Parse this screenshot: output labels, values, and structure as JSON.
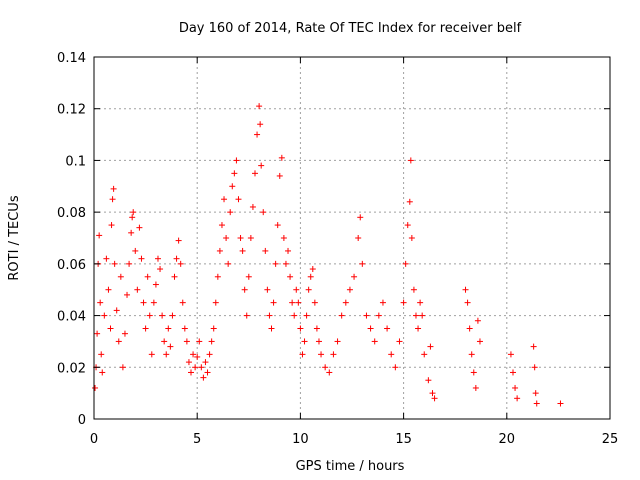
{
  "chart_data": {
    "type": "scatter",
    "title": "Day 160 of 2014, Rate Of TEC Index for receiver belf",
    "xlabel": "GPS time / hours",
    "ylabel": "ROTI / TECUs",
    "xlim": [
      0,
      25
    ],
    "ylim": [
      0,
      0.14
    ],
    "xticks": [
      "0",
      "5",
      "10",
      "15",
      "20",
      "25"
    ],
    "yticks": [
      "0",
      "0.02",
      "0.04",
      "0.06",
      "0.08",
      "0.1",
      "0.12",
      "0.14"
    ],
    "grid": true,
    "marker": "+",
    "color": "#ff0000",
    "series": [
      {
        "name": "ROTI",
        "points": [
          [
            0.05,
            0.012
          ],
          [
            0.1,
            0.02
          ],
          [
            0.15,
            0.033
          ],
          [
            0.2,
            0.06
          ],
          [
            0.25,
            0.071
          ],
          [
            0.3,
            0.045
          ],
          [
            0.35,
            0.025
          ],
          [
            0.4,
            0.018
          ],
          [
            0.5,
            0.04
          ],
          [
            0.6,
            0.062
          ],
          [
            0.7,
            0.05
          ],
          [
            0.8,
            0.035
          ],
          [
            0.85,
            0.075
          ],
          [
            0.9,
            0.085
          ],
          [
            0.95,
            0.089
          ],
          [
            1.0,
            0.06
          ],
          [
            1.1,
            0.042
          ],
          [
            1.2,
            0.03
          ],
          [
            1.3,
            0.055
          ],
          [
            1.4,
            0.02
          ],
          [
            1.5,
            0.033
          ],
          [
            1.6,
            0.048
          ],
          [
            1.7,
            0.06
          ],
          [
            1.8,
            0.072
          ],
          [
            1.85,
            0.078
          ],
          [
            1.9,
            0.08
          ],
          [
            2.0,
            0.065
          ],
          [
            2.1,
            0.05
          ],
          [
            2.2,
            0.074
          ],
          [
            2.3,
            0.062
          ],
          [
            2.4,
            0.045
          ],
          [
            2.5,
            0.035
          ],
          [
            2.6,
            0.055
          ],
          [
            2.7,
            0.04
          ],
          [
            2.8,
            0.025
          ],
          [
            2.9,
            0.045
          ],
          [
            3.0,
            0.052
          ],
          [
            3.1,
            0.062
          ],
          [
            3.2,
            0.058
          ],
          [
            3.3,
            0.04
          ],
          [
            3.4,
            0.03
          ],
          [
            3.5,
            0.025
          ],
          [
            3.6,
            0.035
          ],
          [
            3.7,
            0.028
          ],
          [
            3.8,
            0.04
          ],
          [
            3.9,
            0.055
          ],
          [
            4.0,
            0.062
          ],
          [
            4.1,
            0.069
          ],
          [
            4.2,
            0.06
          ],
          [
            4.3,
            0.045
          ],
          [
            4.4,
            0.035
          ],
          [
            4.5,
            0.03
          ],
          [
            4.6,
            0.022
          ],
          [
            4.7,
            0.018
          ],
          [
            4.8,
            0.025
          ],
          [
            4.9,
            0.02
          ],
          [
            5.0,
            0.024
          ],
          [
            5.1,
            0.03
          ],
          [
            5.2,
            0.02
          ],
          [
            5.3,
            0.016
          ],
          [
            5.4,
            0.022
          ],
          [
            5.5,
            0.018
          ],
          [
            5.6,
            0.025
          ],
          [
            5.7,
            0.03
          ],
          [
            5.8,
            0.035
          ],
          [
            5.9,
            0.045
          ],
          [
            6.0,
            0.055
          ],
          [
            6.1,
            0.065
          ],
          [
            6.2,
            0.075
          ],
          [
            6.3,
            0.085
          ],
          [
            6.4,
            0.07
          ],
          [
            6.5,
            0.06
          ],
          [
            6.6,
            0.08
          ],
          [
            6.7,
            0.09
          ],
          [
            6.8,
            0.095
          ],
          [
            6.9,
            0.1
          ],
          [
            7.0,
            0.085
          ],
          [
            7.1,
            0.07
          ],
          [
            7.2,
            0.065
          ],
          [
            7.3,
            0.05
          ],
          [
            7.4,
            0.04
          ],
          [
            7.5,
            0.055
          ],
          [
            7.6,
            0.07
          ],
          [
            7.7,
            0.082
          ],
          [
            7.8,
            0.095
          ],
          [
            7.9,
            0.11
          ],
          [
            8.0,
            0.121
          ],
          [
            8.05,
            0.114
          ],
          [
            8.1,
            0.098
          ],
          [
            8.2,
            0.08
          ],
          [
            8.3,
            0.065
          ],
          [
            8.4,
            0.05
          ],
          [
            8.5,
            0.04
          ],
          [
            8.6,
            0.035
          ],
          [
            8.7,
            0.045
          ],
          [
            8.8,
            0.06
          ],
          [
            8.9,
            0.075
          ],
          [
            9.0,
            0.094
          ],
          [
            9.1,
            0.101
          ],
          [
            9.2,
            0.07
          ],
          [
            9.3,
            0.06
          ],
          [
            9.4,
            0.065
          ],
          [
            9.5,
            0.055
          ],
          [
            9.6,
            0.045
          ],
          [
            9.7,
            0.04
          ],
          [
            9.8,
            0.05
          ],
          [
            9.9,
            0.045
          ],
          [
            10.0,
            0.035
          ],
          [
            10.1,
            0.025
          ],
          [
            10.2,
            0.03
          ],
          [
            10.3,
            0.04
          ],
          [
            10.4,
            0.05
          ],
          [
            10.5,
            0.055
          ],
          [
            10.6,
            0.058
          ],
          [
            10.7,
            0.045
          ],
          [
            10.8,
            0.035
          ],
          [
            10.9,
            0.03
          ],
          [
            11.0,
            0.025
          ],
          [
            11.2,
            0.02
          ],
          [
            11.4,
            0.018
          ],
          [
            11.6,
            0.025
          ],
          [
            11.8,
            0.03
          ],
          [
            12.0,
            0.04
          ],
          [
            12.2,
            0.045
          ],
          [
            12.4,
            0.05
          ],
          [
            12.6,
            0.055
          ],
          [
            12.8,
            0.07
          ],
          [
            12.9,
            0.078
          ],
          [
            13.0,
            0.06
          ],
          [
            13.2,
            0.04
          ],
          [
            13.4,
            0.035
          ],
          [
            13.6,
            0.03
          ],
          [
            13.8,
            0.04
          ],
          [
            14.0,
            0.045
          ],
          [
            14.2,
            0.035
          ],
          [
            14.4,
            0.025
          ],
          [
            14.6,
            0.02
          ],
          [
            14.8,
            0.03
          ],
          [
            15.0,
            0.045
          ],
          [
            15.1,
            0.06
          ],
          [
            15.2,
            0.075
          ],
          [
            15.3,
            0.084
          ],
          [
            15.35,
            0.1
          ],
          [
            15.4,
            0.07
          ],
          [
            15.5,
            0.05
          ],
          [
            15.6,
            0.04
          ],
          [
            15.7,
            0.035
          ],
          [
            15.8,
            0.045
          ],
          [
            15.9,
            0.04
          ],
          [
            16.0,
            0.025
          ],
          [
            16.2,
            0.015
          ],
          [
            16.3,
            0.028
          ],
          [
            16.4,
            0.01
          ],
          [
            16.5,
            0.008
          ],
          [
            18.0,
            0.05
          ],
          [
            18.1,
            0.045
          ],
          [
            18.2,
            0.035
          ],
          [
            18.3,
            0.025
          ],
          [
            18.4,
            0.018
          ],
          [
            18.5,
            0.012
          ],
          [
            18.6,
            0.038
          ],
          [
            18.7,
            0.03
          ],
          [
            20.2,
            0.025
          ],
          [
            20.3,
            0.018
          ],
          [
            20.4,
            0.012
          ],
          [
            20.5,
            0.008
          ],
          [
            21.3,
            0.028
          ],
          [
            21.35,
            0.02
          ],
          [
            21.4,
            0.01
          ],
          [
            21.45,
            0.006
          ],
          [
            22.6,
            0.006
          ]
        ]
      }
    ]
  }
}
